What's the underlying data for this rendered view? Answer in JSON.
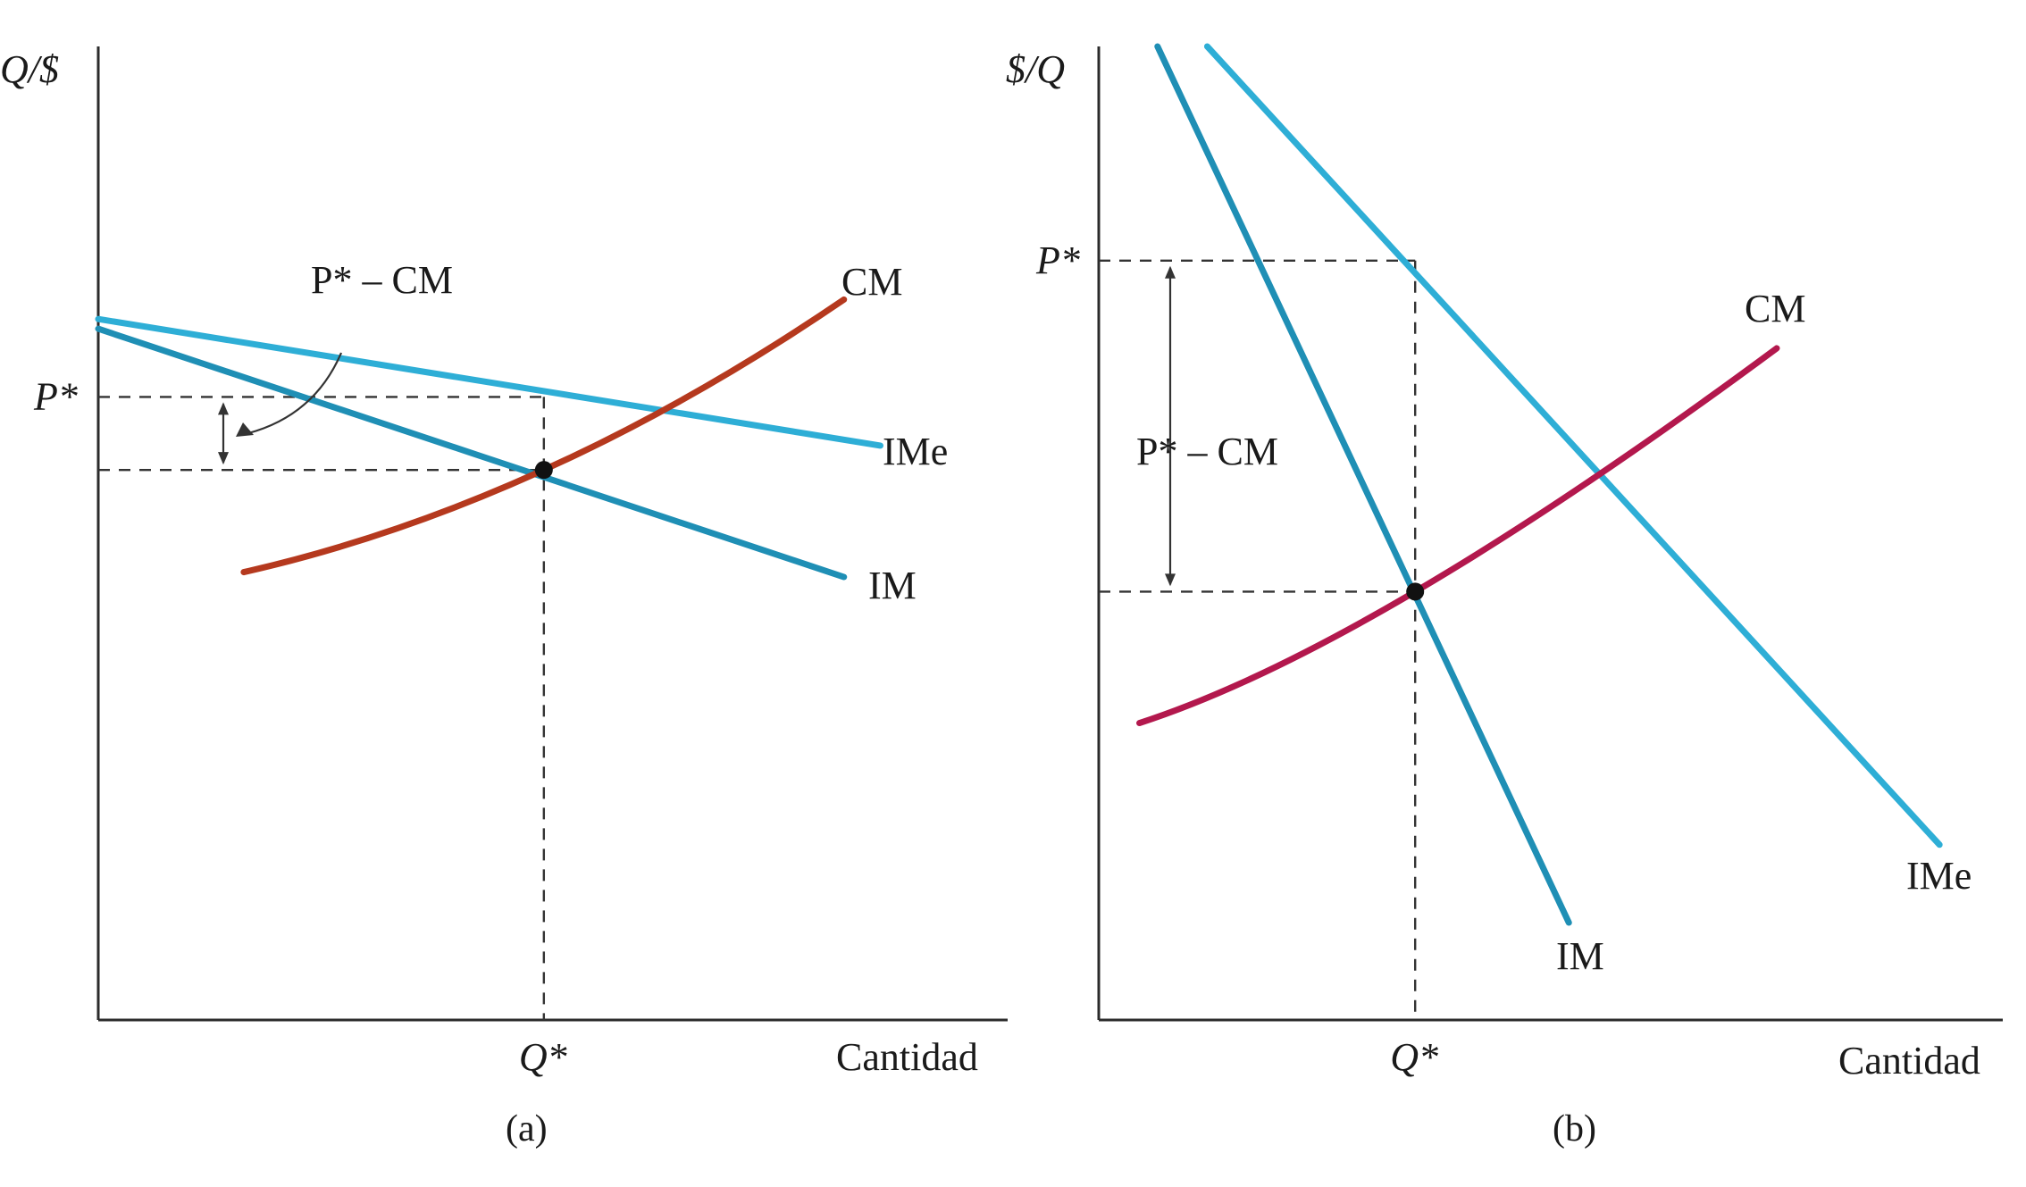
{
  "chart_data": [
    {
      "type": "line",
      "panel": "(a)",
      "ylabel": "Q/$",
      "xlabel": "Cantidad",
      "x_tick": "Q*",
      "y_tick": "P*",
      "annotation": "P* – CM",
      "xlim": [
        0,
        10
      ],
      "ylim": [
        0,
        10
      ],
      "equilibrium": {
        "x": 4.9,
        "y": 5.65
      },
      "price": 6.4,
      "series": [
        {
          "name": "IMe",
          "color": "#2eaed6",
          "x": [
            0,
            8.6
          ],
          "y": [
            7.2,
            5.9
          ]
        },
        {
          "name": "IM",
          "color": "#1f8fb5",
          "x": [
            0,
            8.2
          ],
          "y": [
            7.1,
            4.55
          ]
        },
        {
          "name": "CM",
          "color": "#b5391e",
          "x": [
            1.6,
            4.9,
            8.2
          ],
          "y": [
            4.6,
            5.65,
            7.4
          ]
        }
      ]
    },
    {
      "type": "line",
      "panel": "(b)",
      "ylabel": "$/Q",
      "xlabel": "Cantidad",
      "x_tick": "Q*",
      "y_tick": "P*",
      "annotation": "P* – CM",
      "xlim": [
        0,
        10
      ],
      "ylim": [
        0,
        10
      ],
      "equilibrium": {
        "x": 3.5,
        "y": 4.4
      },
      "price": 7.8,
      "series": [
        {
          "name": "IM",
          "color": "#1f8fb5",
          "x": [
            0.65,
            5.2
          ],
          "y": [
            10,
            1.0
          ]
        },
        {
          "name": "IMe",
          "color": "#2eaed6",
          "x": [
            1.2,
            9.3
          ],
          "y": [
            10,
            1.8
          ]
        },
        {
          "name": "CM",
          "color": "#b3184d",
          "x": [
            0.45,
            3.5,
            7.5
          ],
          "y": [
            3.05,
            4.4,
            6.9
          ]
        }
      ]
    }
  ]
}
